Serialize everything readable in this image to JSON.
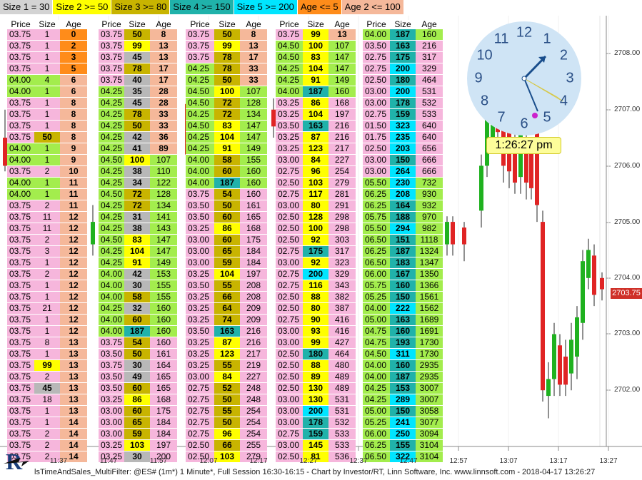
{
  "legend": [
    {
      "label": "Size 1 = 30",
      "color": "#d3d3d3"
    },
    {
      "label": "Size 2 >= 50",
      "color": "#ffff00"
    },
    {
      "label": "Size 3 >= 80",
      "color": "#c8b400"
    },
    {
      "label": "Size 4 >= 150",
      "color": "#20b2aa"
    },
    {
      "label": "Size 5 >= 200",
      "color": "#00e5ff"
    },
    {
      "label": "Age <= 5",
      "color": "#ff8c1a"
    },
    {
      "label": "Age 2 <= 100",
      "color": "#f5b89a"
    }
  ],
  "table_headers": [
    "Price",
    "Size",
    "Age"
  ],
  "colors": {
    "green_row": "#a3ed4d",
    "pink_row": "#f6b6dc",
    "up": "#1fb11f",
    "down": "#e02424",
    "clock_face": "#cfe4f5",
    "accent": "#1a4e8c"
  },
  "tables": [
    {
      "rows": [
        [
          "03.75",
          "1",
          "0"
        ],
        [
          "03.75",
          "1",
          "2"
        ],
        [
          "03.75",
          "1",
          "3"
        ],
        [
          "03.75",
          "1",
          "5"
        ],
        [
          "04.00",
          "4",
          "6"
        ],
        [
          "04.00",
          "1",
          "6"
        ],
        [
          "03.75",
          "1",
          "8"
        ],
        [
          "03.75",
          "1",
          "8"
        ],
        [
          "03.75",
          "1",
          "8"
        ],
        [
          "03.75",
          "50",
          "8"
        ],
        [
          "04.00",
          "1",
          "9"
        ],
        [
          "04.00",
          "1",
          "9"
        ],
        [
          "03.75",
          "2",
          "10"
        ],
        [
          "04.00",
          "1",
          "11"
        ],
        [
          "04.00",
          "1",
          "11"
        ],
        [
          "03.75",
          "2",
          "11"
        ],
        [
          "03.75",
          "11",
          "12"
        ],
        [
          "03.75",
          "11",
          "12"
        ],
        [
          "03.75",
          "2",
          "12"
        ],
        [
          "03.75",
          "3",
          "12"
        ],
        [
          "03.75",
          "1",
          "12"
        ],
        [
          "03.75",
          "2",
          "12"
        ],
        [
          "03.75",
          "1",
          "12"
        ],
        [
          "03.75",
          "1",
          "12"
        ],
        [
          "03.75",
          "21",
          "12"
        ],
        [
          "03.75",
          "1",
          "12"
        ],
        [
          "03.75",
          "1",
          "12"
        ],
        [
          "03.75",
          "8",
          "13"
        ],
        [
          "03.75",
          "1",
          "13"
        ],
        [
          "03.75",
          "99",
          "13"
        ],
        [
          "03.75",
          "2",
          "13"
        ],
        [
          "03.75",
          "45",
          "13"
        ],
        [
          "03.75",
          "18",
          "13"
        ],
        [
          "03.75",
          "1",
          "13"
        ],
        [
          "03.75",
          "1",
          "14"
        ],
        [
          "03.75",
          "2",
          "14"
        ],
        [
          "03.75",
          "2",
          "14"
        ],
        [
          "03.75",
          "2",
          "14"
        ]
      ]
    },
    {
      "rows": [
        [
          "03.75",
          "50",
          "8"
        ],
        [
          "03.75",
          "99",
          "13"
        ],
        [
          "03.75",
          "45",
          "13"
        ],
        [
          "03.75",
          "78",
          "17"
        ],
        [
          "03.75",
          "40",
          "17"
        ],
        [
          "04.25",
          "35",
          "28"
        ],
        [
          "04.25",
          "45",
          "28"
        ],
        [
          "04.25",
          "78",
          "33"
        ],
        [
          "04.25",
          "50",
          "33"
        ],
        [
          "04.25",
          "42",
          "36"
        ],
        [
          "04.25",
          "41",
          "89"
        ],
        [
          "04.50",
          "100",
          "107"
        ],
        [
          "04.25",
          "38",
          "110"
        ],
        [
          "04.25",
          "34",
          "122"
        ],
        [
          "04.50",
          "72",
          "128"
        ],
        [
          "04.25",
          "72",
          "134"
        ],
        [
          "04.25",
          "31",
          "141"
        ],
        [
          "04.25",
          "38",
          "143"
        ],
        [
          "04.50",
          "83",
          "147"
        ],
        [
          "04.25",
          "104",
          "147"
        ],
        [
          "04.25",
          "91",
          "149"
        ],
        [
          "04.00",
          "42",
          "153"
        ],
        [
          "04.00",
          "30",
          "155"
        ],
        [
          "04.00",
          "58",
          "155"
        ],
        [
          "04.25",
          "32",
          "160"
        ],
        [
          "04.00",
          "60",
          "160"
        ],
        [
          "04.00",
          "187",
          "160"
        ],
        [
          "03.75",
          "54",
          "160"
        ],
        [
          "03.50",
          "50",
          "161"
        ],
        [
          "03.75",
          "30",
          "164"
        ],
        [
          "03.50",
          "49",
          "165"
        ],
        [
          "03.50",
          "60",
          "165"
        ],
        [
          "03.25",
          "86",
          "168"
        ],
        [
          "03.00",
          "60",
          "175"
        ],
        [
          "03.00",
          "65",
          "184"
        ],
        [
          "03.00",
          "59",
          "184"
        ],
        [
          "03.25",
          "103",
          "197"
        ],
        [
          "03.25",
          "30",
          "200"
        ]
      ]
    },
    {
      "rows": [
        [
          "03.75",
          "50",
          "8"
        ],
        [
          "03.75",
          "99",
          "13"
        ],
        [
          "03.75",
          "78",
          "17"
        ],
        [
          "04.25",
          "78",
          "33"
        ],
        [
          "04.25",
          "50",
          "33"
        ],
        [
          "04.50",
          "100",
          "107"
        ],
        [
          "04.50",
          "72",
          "128"
        ],
        [
          "04.25",
          "72",
          "134"
        ],
        [
          "04.50",
          "83",
          "147"
        ],
        [
          "04.25",
          "104",
          "147"
        ],
        [
          "04.25",
          "91",
          "149"
        ],
        [
          "04.00",
          "58",
          "155"
        ],
        [
          "04.00",
          "60",
          "160"
        ],
        [
          "04.00",
          "187",
          "160"
        ],
        [
          "03.75",
          "54",
          "160"
        ],
        [
          "03.50",
          "50",
          "161"
        ],
        [
          "03.50",
          "60",
          "165"
        ],
        [
          "03.25",
          "86",
          "168"
        ],
        [
          "03.00",
          "60",
          "175"
        ],
        [
          "03.00",
          "65",
          "184"
        ],
        [
          "03.00",
          "59",
          "184"
        ],
        [
          "03.25",
          "104",
          "197"
        ],
        [
          "03.50",
          "55",
          "208"
        ],
        [
          "03.25",
          "66",
          "208"
        ],
        [
          "03.25",
          "64",
          "209"
        ],
        [
          "03.25",
          "74",
          "209"
        ],
        [
          "03.50",
          "163",
          "216"
        ],
        [
          "03.25",
          "87",
          "216"
        ],
        [
          "03.25",
          "123",
          "217"
        ],
        [
          "03.25",
          "55",
          "219"
        ],
        [
          "03.00",
          "84",
          "227"
        ],
        [
          "02.75",
          "52",
          "248"
        ],
        [
          "02.75",
          "50",
          "248"
        ],
        [
          "02.75",
          "55",
          "254"
        ],
        [
          "02.75",
          "50",
          "254"
        ],
        [
          "02.75",
          "96",
          "254"
        ],
        [
          "02.50",
          "66",
          "255"
        ],
        [
          "02.50",
          "103",
          "279"
        ]
      ]
    },
    {
      "rows": [
        [
          "03.75",
          "99",
          "13"
        ],
        [
          "04.50",
          "100",
          "107"
        ],
        [
          "04.50",
          "83",
          "147"
        ],
        [
          "04.25",
          "104",
          "147"
        ],
        [
          "04.25",
          "91",
          "149"
        ],
        [
          "04.00",
          "187",
          "160"
        ],
        [
          "03.25",
          "86",
          "168"
        ],
        [
          "03.25",
          "104",
          "197"
        ],
        [
          "03.50",
          "163",
          "216"
        ],
        [
          "03.25",
          "87",
          "216"
        ],
        [
          "03.25",
          "123",
          "217"
        ],
        [
          "03.00",
          "84",
          "227"
        ],
        [
          "02.75",
          "96",
          "254"
        ],
        [
          "02.50",
          "103",
          "279"
        ],
        [
          "02.75",
          "117",
          "281"
        ],
        [
          "03.00",
          "80",
          "291"
        ],
        [
          "02.50",
          "128",
          "298"
        ],
        [
          "02.50",
          "100",
          "298"
        ],
        [
          "02.50",
          "92",
          "303"
        ],
        [
          "02.75",
          "175",
          "317"
        ],
        [
          "03.00",
          "92",
          "323"
        ],
        [
          "02.75",
          "200",
          "329"
        ],
        [
          "02.75",
          "116",
          "343"
        ],
        [
          "02.50",
          "88",
          "382"
        ],
        [
          "02.50",
          "80",
          "387"
        ],
        [
          "02.75",
          "90",
          "416"
        ],
        [
          "03.00",
          "93",
          "416"
        ],
        [
          "03.00",
          "99",
          "427"
        ],
        [
          "02.50",
          "180",
          "464"
        ],
        [
          "02.50",
          "88",
          "480"
        ],
        [
          "02.50",
          "89",
          "489"
        ],
        [
          "02.50",
          "130",
          "489"
        ],
        [
          "03.00",
          "130",
          "531"
        ],
        [
          "03.00",
          "200",
          "531"
        ],
        [
          "03.00",
          "178",
          "532"
        ],
        [
          "02.75",
          "159",
          "533"
        ],
        [
          "03.00",
          "145",
          "533"
        ],
        [
          "02.50",
          "81",
          "536"
        ]
      ]
    },
    {
      "rows": [
        [
          "04.00",
          "187",
          "160"
        ],
        [
          "03.50",
          "163",
          "216"
        ],
        [
          "02.75",
          "175",
          "317"
        ],
        [
          "02.75",
          "200",
          "329"
        ],
        [
          "02.50",
          "180",
          "464"
        ],
        [
          "03.00",
          "200",
          "531"
        ],
        [
          "03.00",
          "178",
          "532"
        ],
        [
          "02.75",
          "159",
          "533"
        ],
        [
          "01.50",
          "323",
          "640"
        ],
        [
          "01.75",
          "235",
          "640"
        ],
        [
          "02.50",
          "203",
          "656"
        ],
        [
          "03.00",
          "150",
          "666"
        ],
        [
          "03.00",
          "264",
          "666"
        ],
        [
          "05.50",
          "230",
          "732"
        ],
        [
          "06.25",
          "208",
          "930"
        ],
        [
          "06.25",
          "164",
          "932"
        ],
        [
          "05.75",
          "188",
          "970"
        ],
        [
          "05.50",
          "294",
          "982"
        ],
        [
          "06.50",
          "151",
          "1118"
        ],
        [
          "06.25",
          "187",
          "1324"
        ],
        [
          "06.50",
          "183",
          "1347"
        ],
        [
          "06.00",
          "167",
          "1350"
        ],
        [
          "05.75",
          "160",
          "1366"
        ],
        [
          "05.25",
          "150",
          "1561"
        ],
        [
          "04.00",
          "222",
          "1562"
        ],
        [
          "05.00",
          "163",
          "1689"
        ],
        [
          "04.75",
          "160",
          "1691"
        ],
        [
          "04.75",
          "193",
          "1730"
        ],
        [
          "04.50",
          "311",
          "1730"
        ],
        [
          "04.00",
          "160",
          "2935"
        ],
        [
          "04.00",
          "187",
          "2935"
        ],
        [
          "04.25",
          "153",
          "3007"
        ],
        [
          "04.25",
          "289",
          "3007"
        ],
        [
          "05.00",
          "150",
          "3058"
        ],
        [
          "05.25",
          "241",
          "3077"
        ],
        [
          "06.00",
          "250",
          "3094"
        ],
        [
          "06.25",
          "155",
          "3104"
        ],
        [
          "06.50",
          "322",
          "3104"
        ]
      ]
    }
  ],
  "clock": {
    "numbers": [
      "12",
      "1",
      "2",
      "3",
      "4",
      "5",
      "6",
      "7",
      "8",
      "9",
      "10",
      "11"
    ],
    "time": "1:26:27 pm"
  },
  "price_axis": {
    "labels": [
      "2708.00",
      "2707.00",
      "2706.00",
      "2705.00",
      "2704.00",
      "2703.00",
      "2702.00"
    ],
    "last_price": "2703.75"
  },
  "time_axis": {
    "labels": [
      "11:37",
      "11:47",
      "11:57",
      "12:07",
      "12:17",
      "12:27",
      "12:37",
      "12:47",
      "12:57",
      "13:07",
      "13:17",
      "13:27"
    ]
  },
  "status_bar": "lsTimeAndSales_MultiFilter: @ES# (1m*) 1 Minute*, Full Session 16:30-16:15 - Chart by Investor/RT, Linn Software, Inc. www.linnsoft.com - 2018-04-17 13:26:27"
}
